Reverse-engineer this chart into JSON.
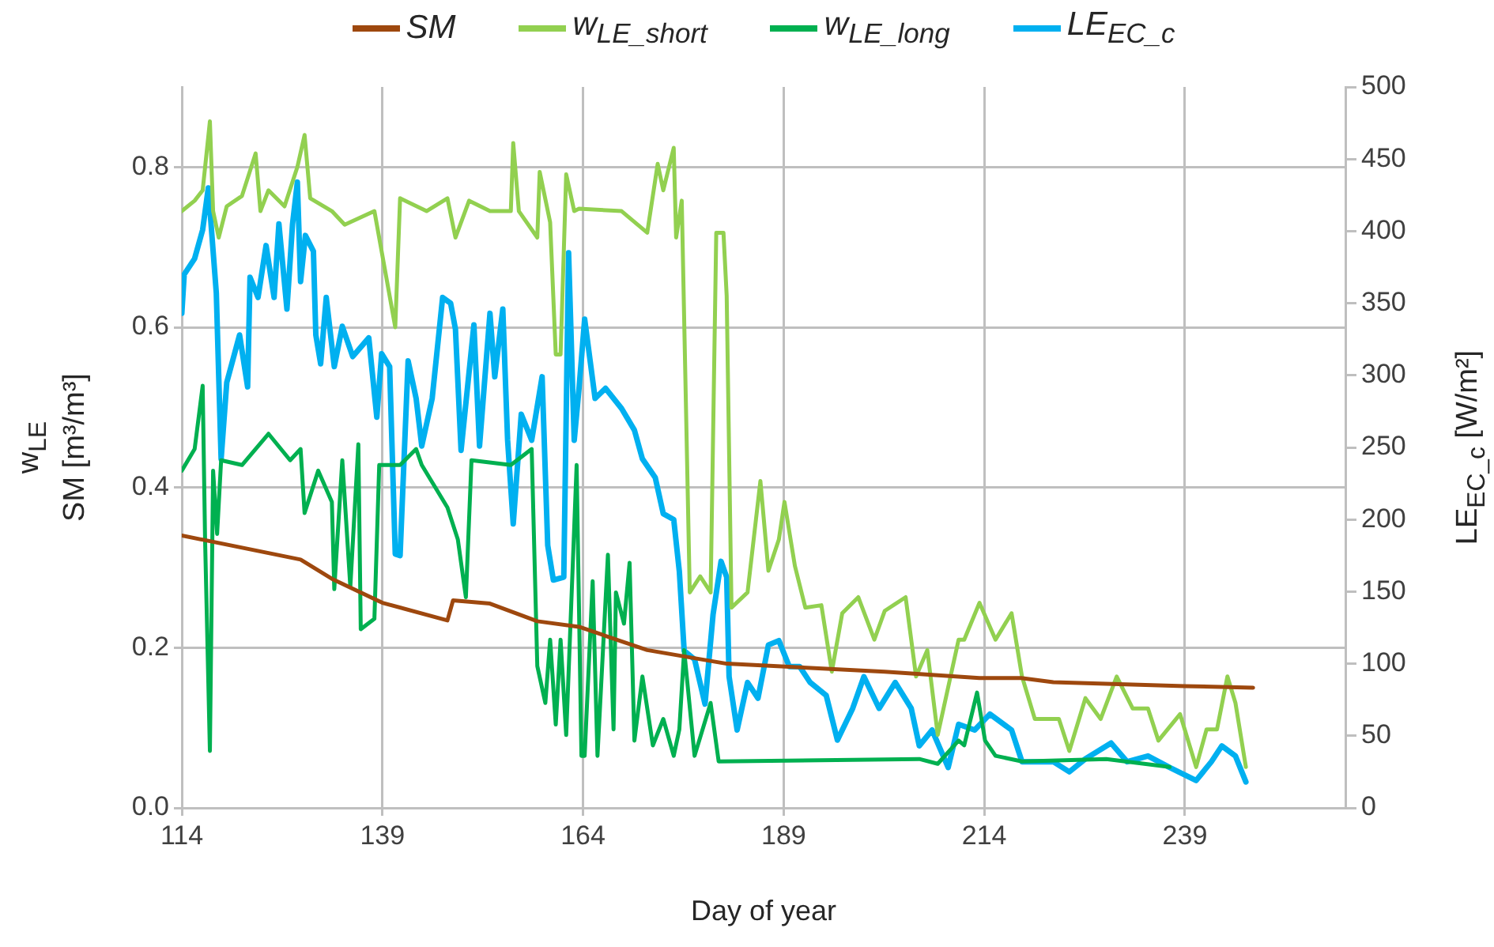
{
  "chart_data": {
    "type": "line",
    "xlabel": "Day of year",
    "ylabel": "w$_{LE}$\nSM [m³/m³]",
    "y2label": "LE$_{EC_c}$ [W/m²]",
    "xlim": [
      114,
      259
    ],
    "xticks": [
      114,
      139,
      164,
      189,
      214,
      239
    ],
    "ylim": [
      0,
      0.9
    ],
    "yticks": [
      {
        "value": 0,
        "label": "0.0"
      },
      0.2,
      0.4,
      0.6,
      0.8
    ],
    "y2lim": [
      0,
      500
    ],
    "y2ticks": [
      0,
      50,
      100,
      150,
      200,
      250,
      300,
      350,
      400,
      450,
      500
    ],
    "grid": true,
    "legend": "top",
    "series": [
      {
        "name": "SM",
        "color": "#9e480e",
        "x": [
          114,
          128.8,
          132.7,
          139,
          147.1,
          147.8,
          152.4,
          158.3,
          163.5,
          172,
          181.9,
          201.6,
          213.4,
          218.6,
          222.6,
          239,
          247.5
        ],
        "values": [
          0.34,
          0.31,
          0.286,
          0.256,
          0.234,
          0.259,
          0.255,
          0.233,
          0.226,
          0.197,
          0.18,
          0.17,
          0.162,
          0.162,
          0.157,
          0.152,
          0.15
        ]
      },
      {
        "name": "w$_{LE_short}$",
        "color": "#92d050",
        "x": [
          114,
          115.6,
          116.6,
          117.5,
          117.9,
          118.6,
          119.6,
          121.5,
          123.2,
          123.8,
          124.8,
          126.8,
          128.4,
          129.3,
          130,
          132.7,
          134.3,
          138,
          140.6,
          141.2,
          144.5,
          147.1,
          148.1,
          149.8,
          152.4,
          155,
          155.3,
          156,
          158.3,
          158.6,
          159.9,
          160.6,
          161.2,
          161.9,
          162.9,
          163.5,
          168.8,
          172,
          173.3,
          174,
          175.3,
          175.6,
          176.3,
          177.3,
          178.6,
          179.9,
          180.6,
          181.5,
          181.9,
          182.5,
          184.5,
          186.1,
          187.1,
          188.4,
          189.1,
          190.4,
          191.7,
          193.7,
          195,
          196.3,
          198.3,
          200.3,
          201.6,
          204.2,
          205.5,
          206.9,
          208.2,
          210.8,
          211.5,
          213.4,
          215.4,
          217.4,
          218.7,
          220.3,
          223.3,
          224.6,
          226.6,
          228.5,
          230.5,
          232.5,
          234.4,
          235.7,
          238.4,
          240.4,
          241.7,
          243,
          244.3,
          245.3,
          246.6
        ],
        "values": [
          0.745,
          0.758,
          0.771,
          0.857,
          0.745,
          0.712,
          0.751,
          0.764,
          0.817,
          0.745,
          0.771,
          0.751,
          0.8,
          0.84,
          0.761,
          0.745,
          0.728,
          0.745,
          0.6,
          0.761,
          0.745,
          0.761,
          0.712,
          0.758,
          0.745,
          0.745,
          0.83,
          0.745,
          0.712,
          0.794,
          0.731,
          0.566,
          0.566,
          0.791,
          0.745,
          0.748,
          0.745,
          0.718,
          0.804,
          0.771,
          0.824,
          0.712,
          0.758,
          0.269,
          0.289,
          0.269,
          0.718,
          0.718,
          0.639,
          0.25,
          0.269,
          0.408,
          0.296,
          0.335,
          0.382,
          0.302,
          0.25,
          0.253,
          0.17,
          0.243,
          0.263,
          0.21,
          0.246,
          0.263,
          0.164,
          0.197,
          0.091,
          0.21,
          0.21,
          0.256,
          0.21,
          0.243,
          0.164,
          0.111,
          0.111,
          0.071,
          0.137,
          0.111,
          0.164,
          0.124,
          0.124,
          0.084,
          0.117,
          0.051,
          0.098,
          0.098,
          0.164,
          0.131,
          0.051
        ]
      },
      {
        "name": "w$_{LE_long}$",
        "color": "#00b050",
        "x": [
          114,
          115.6,
          116.6,
          116.9,
          117.5,
          117.9,
          118.4,
          118.9,
          121.5,
          124.8,
          127.5,
          128.8,
          129.3,
          131,
          132.7,
          133,
          134,
          135,
          136,
          136.3,
          138,
          138.6,
          141.2,
          143.2,
          143.9,
          147.1,
          148.4,
          149.4,
          150.1,
          155,
          157.6,
          158.3,
          159.3,
          159.9,
          160.6,
          161.2,
          161.9,
          163.2,
          163.8,
          164.2,
          165.2,
          165.8,
          167.1,
          167.8,
          168.1,
          169.1,
          169.8,
          170.4,
          171.4,
          172.7,
          174,
          175.3,
          176,
          176.6,
          177.9,
          179.9,
          180.9,
          205.9,
          208.2,
          210.8,
          211.5,
          213.1,
          214.1,
          215.4,
          218.7,
          229.2,
          237.1
        ],
        "values": [
          0.421,
          0.448,
          0.527,
          0.335,
          0.071,
          0.421,
          0.342,
          0.434,
          0.428,
          0.467,
          0.434,
          0.448,
          0.368,
          0.421,
          0.382,
          0.273,
          0.434,
          0.276,
          0.454,
          0.223,
          0.236,
          0.428,
          0.428,
          0.448,
          0.428,
          0.375,
          0.335,
          0.263,
          0.434,
          0.428,
          0.448,
          0.177,
          0.131,
          0.21,
          0.104,
          0.21,
          0.091,
          0.428,
          0.065,
          0.065,
          0.283,
          0.065,
          0.316,
          0.098,
          0.269,
          0.23,
          0.306,
          0.084,
          0.164,
          0.078,
          0.111,
          0.065,
          0.098,
          0.197,
          0.065,
          0.131,
          0.058,
          0.061,
          0.055,
          0.084,
          0.078,
          0.144,
          0.084,
          0.065,
          0.058,
          0.061,
          0.051
        ]
      },
      {
        "name": "LE$_{EC_c}$",
        "color": "#00b0f0",
        "axis": "y2",
        "x": [
          114,
          114.3,
          115.6,
          116.6,
          117.3,
          118.3,
          118.9,
          119.6,
          121.2,
          122.2,
          122.5,
          123.5,
          124.5,
          125.5,
          126.1,
          127.1,
          127.8,
          128.4,
          128.8,
          129.4,
          130.4,
          130.7,
          131.3,
          132,
          133,
          134,
          135.3,
          137.3,
          138.3,
          138.9,
          139.9,
          140.6,
          141.2,
          142.2,
          143.2,
          143.9,
          145.2,
          146.5,
          147.5,
          148.1,
          148.8,
          150.4,
          151.1,
          152.4,
          153,
          154,
          154.6,
          155.3,
          156.3,
          157.6,
          158.9,
          159.6,
          160.3,
          161.6,
          162.2,
          162.9,
          163.5,
          164.2,
          165.5,
          166.8,
          168.8,
          170.4,
          171.4,
          173,
          174,
          175.3,
          176,
          176.6,
          177.9,
          179.2,
          180.2,
          181.2,
          181.9,
          182.2,
          183.2,
          184.5,
          185.8,
          187.1,
          188.4,
          189.7,
          191,
          192.3,
          194.3,
          195.7,
          197.6,
          199,
          200.9,
          202.9,
          204.9,
          205.9,
          207.5,
          209.5,
          210.8,
          212.8,
          214.7,
          217.4,
          218.7,
          222.6,
          224.6,
          226.6,
          229.8,
          231.8,
          234.4,
          237.1,
          240.4,
          242.3,
          243.6,
          245.3,
          246.6
        ],
        "values": [
          343,
          370,
          381,
          401,
          430,
          357,
          242,
          295,
          328,
          292,
          368,
          354,
          390,
          354,
          405,
          346,
          405,
          434,
          365,
          397,
          386,
          328,
          308,
          354,
          306,
          334,
          313,
          326,
          271,
          315,
          306,
          176,
          175,
          310,
          284,
          251,
          284,
          354,
          350,
          332,
          248,
          335,
          251,
          343,
          299,
          346,
          255,
          197,
          273,
          255,
          299,
          182,
          158,
          160,
          385,
          255,
          291,
          339,
          284,
          291,
          277,
          262,
          242,
          229,
          204,
          200,
          164,
          109,
          103,
          72,
          134,
          171,
          160,
          91,
          54,
          87,
          76,
          113,
          116,
          98,
          98,
          87,
          78,
          47,
          69,
          91,
          69,
          87,
          69,
          43,
          54,
          28,
          58,
          54,
          65,
          54,
          32,
          32,
          25,
          34,
          45,
          32,
          36,
          28,
          19,
          32,
          43,
          36,
          18
        ]
      }
    ]
  }
}
